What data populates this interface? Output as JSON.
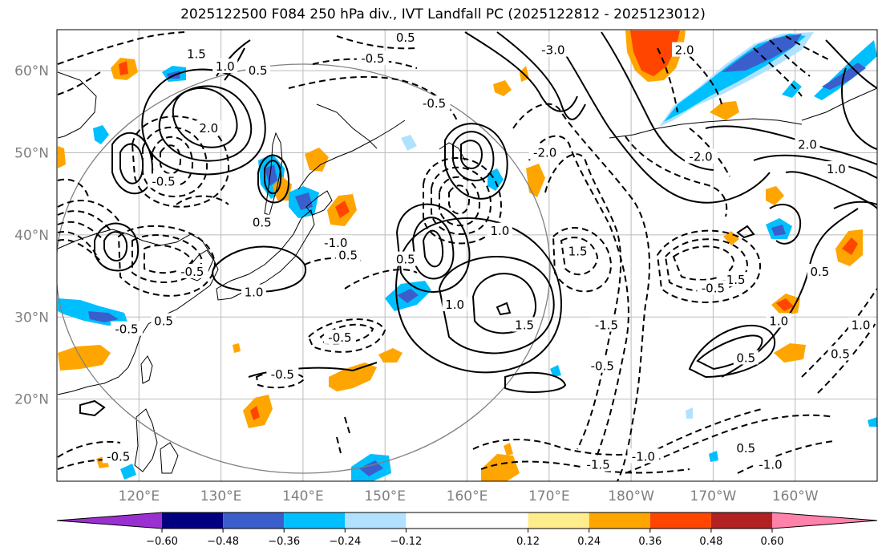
{
  "title": "2025122500 F084 250 hPa div., IVT Landfall PC (2025122812 - 2025123012)",
  "map": {
    "projection": "PlateCarree",
    "lon_range": [
      110,
      210
    ],
    "lat_range": [
      10,
      65
    ],
    "lat_ticks": [
      {
        "value": 20,
        "label": "20°N"
      },
      {
        "value": 30,
        "label": "30°N"
      },
      {
        "value": 40,
        "label": "40°N"
      },
      {
        "value": 50,
        "label": "50°N"
      },
      {
        "value": 60,
        "label": "60°N"
      }
    ],
    "lon_ticks": [
      {
        "value": 120,
        "label": "120°E"
      },
      {
        "value": 130,
        "label": "130°E"
      },
      {
        "value": 140,
        "label": "140°E"
      },
      {
        "value": 150,
        "label": "150°E"
      },
      {
        "value": 160,
        "label": "160°E"
      },
      {
        "value": 170,
        "label": "170°E"
      },
      {
        "value": 180,
        "label": "180°W"
      },
      {
        "value": 190,
        "label": "170°W"
      },
      {
        "value": 200,
        "label": "160°W"
      }
    ],
    "gridlines": true,
    "contour_labels": [
      {
        "text": "1.5",
        "lon": 127,
        "lat": 62
      },
      {
        "text": "1.0",
        "lon": 130.5,
        "lat": 60.5
      },
      {
        "text": "0.5",
        "lon": 134.5,
        "lat": 60
      },
      {
        "text": "2.0",
        "lon": 128.5,
        "lat": 53
      },
      {
        "text": "0.5",
        "lon": 152.5,
        "lat": 64
      },
      {
        "text": "-0.5",
        "lon": 148.5,
        "lat": 61.5
      },
      {
        "text": "-3.0",
        "lon": 170.5,
        "lat": 62.5
      },
      {
        "text": "2.0",
        "lon": 186.5,
        "lat": 62.5
      },
      {
        "text": "-0.5",
        "lon": 156,
        "lat": 56
      },
      {
        "text": "-0.5",
        "lon": 123,
        "lat": 46.5
      },
      {
        "text": "0.5",
        "lon": 135,
        "lat": 41.5
      },
      {
        "text": "-1.0",
        "lon": 144,
        "lat": 39
      },
      {
        "text": "0.5",
        "lon": 145.5,
        "lat": 37.5
      },
      {
        "text": "1.0",
        "lon": 164,
        "lat": 40.5
      },
      {
        "text": "0.5",
        "lon": 152.5,
        "lat": 37
      },
      {
        "text": "-2.0",
        "lon": 169.5,
        "lat": 50
      },
      {
        "text": "1.5",
        "lon": 173.5,
        "lat": 38
      },
      {
        "text": "-0.5",
        "lon": 126.5,
        "lat": 35.5
      },
      {
        "text": "1.0",
        "lon": 134,
        "lat": 33
      },
      {
        "text": "-0.5",
        "lon": 118.5,
        "lat": 28.5
      },
      {
        "text": "0.5",
        "lon": 123,
        "lat": 29.5
      },
      {
        "text": "-0.5",
        "lon": 144.5,
        "lat": 27.5
      },
      {
        "text": "-0.5",
        "lon": 137.5,
        "lat": 23
      },
      {
        "text": "1.0",
        "lon": 158.5,
        "lat": 31.5
      },
      {
        "text": "1.5",
        "lon": 167,
        "lat": 29
      },
      {
        "text": "-1.5",
        "lon": 177,
        "lat": 29
      },
      {
        "text": "-0.5",
        "lon": 176.5,
        "lat": 24
      },
      {
        "text": "-2.0",
        "lon": 188.5,
        "lat": 49.5
      },
      {
        "text": "2.0",
        "lon": 201.5,
        "lat": 51
      },
      {
        "text": "1.0",
        "lon": 205,
        "lat": 48
      },
      {
        "text": "-1.5",
        "lon": 192.5,
        "lat": 34.5
      },
      {
        "text": "-0.5",
        "lon": 190,
        "lat": 33.5
      },
      {
        "text": "0.5",
        "lon": 203,
        "lat": 35.5
      },
      {
        "text": "1.0",
        "lon": 198,
        "lat": 29.5
      },
      {
        "text": "0.5",
        "lon": 194,
        "lat": 25
      },
      {
        "text": "0.5",
        "lon": 205.5,
        "lat": 25.5
      },
      {
        "text": "1.0",
        "lon": 208,
        "lat": 29
      },
      {
        "text": "0.5",
        "lon": 194,
        "lat": 14
      },
      {
        "text": "-1.0",
        "lon": 197,
        "lat": 12
      },
      {
        "text": "-1.5",
        "lon": 176,
        "lat": 12
      },
      {
        "text": "-1.0",
        "lon": 181.5,
        "lat": 13
      },
      {
        "text": "-0.5",
        "lon": 117.5,
        "lat": 13
      }
    ]
  },
  "colorbar": {
    "extend": "both",
    "boundaries": [
      -0.72,
      -0.6,
      -0.48,
      -0.36,
      -0.24,
      -0.12,
      0.12,
      0.24,
      0.36,
      0.48,
      0.6,
      0.72
    ],
    "colors": [
      "#9b30d0",
      "#000080",
      "#3a5fcd",
      "#00bfff",
      "#b0e2ff",
      "#ffffff",
      "#ffec8b",
      "#ffa500",
      "#ff4500",
      "#b22222",
      "#ff82ab"
    ],
    "under_color": "#9b30d0",
    "over_color": "#ff82ab",
    "tick_labels": [
      "−0.60",
      "−0.48",
      "−0.36",
      "−0.24",
      "−0.12",
      "0.12",
      "0.24",
      "0.36",
      "0.48",
      "0.60"
    ]
  }
}
